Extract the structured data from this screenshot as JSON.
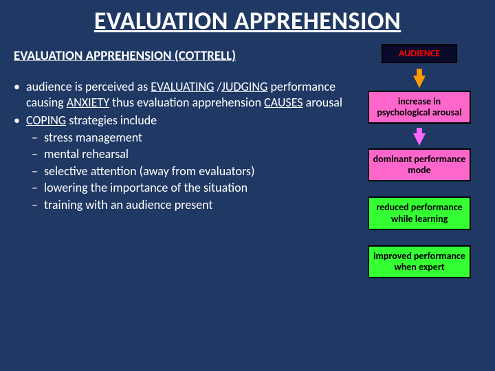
{
  "background_color": "#1f3864",
  "title": "EVALUATION APPREHENSION",
  "subtitle": "EVALUATION APPREHENSION (COTTRELL)",
  "bullets": [
    {
      "html_segments": [
        {
          "t": "audience is perceived as "
        },
        {
          "t": "EVALUATING",
          "u": true
        },
        {
          "t": " /"
        },
        {
          "t": "JUDGING",
          "u": true
        },
        {
          "t": " performance causing "
        },
        {
          "t": "ANXIETY",
          "u": true
        },
        {
          "t": " thus evaluation apprehension "
        },
        {
          "t": "CAUSES",
          "u": true
        },
        {
          "t": " arousal"
        }
      ]
    },
    {
      "html_segments": [
        {
          "t": "COPING",
          "u": true
        },
        {
          "t": " strategies include"
        }
      ],
      "sub": [
        "stress management",
        "mental rehearsal",
        "selective attention (away from evaluators)",
        "lowering the importance of the situation",
        "training with an audience present"
      ]
    }
  ],
  "diagram": {
    "boxes": [
      {
        "label": "AUDIENCE",
        "bg": "#0a0a2a",
        "text_color": "#ff0000",
        "class": "audience"
      },
      {
        "label": "increase in psychological arousal",
        "bg": "#ff66cc",
        "text_color": "#000000",
        "class": "pink"
      },
      {
        "label": "dominant performance mode",
        "bg": "#ff66cc",
        "text_color": "#000000",
        "class": "pink"
      },
      {
        "label": "reduced performance while learning",
        "bg": "#33ff33",
        "text_color": "#000000",
        "class": "green"
      },
      {
        "label": "improved performance when expert",
        "bg": "#33ff33",
        "text_color": "#000000",
        "class": "green"
      }
    ],
    "arrow_colors": {
      "orange": "#ff9900",
      "pink": "#ff66ff"
    }
  }
}
